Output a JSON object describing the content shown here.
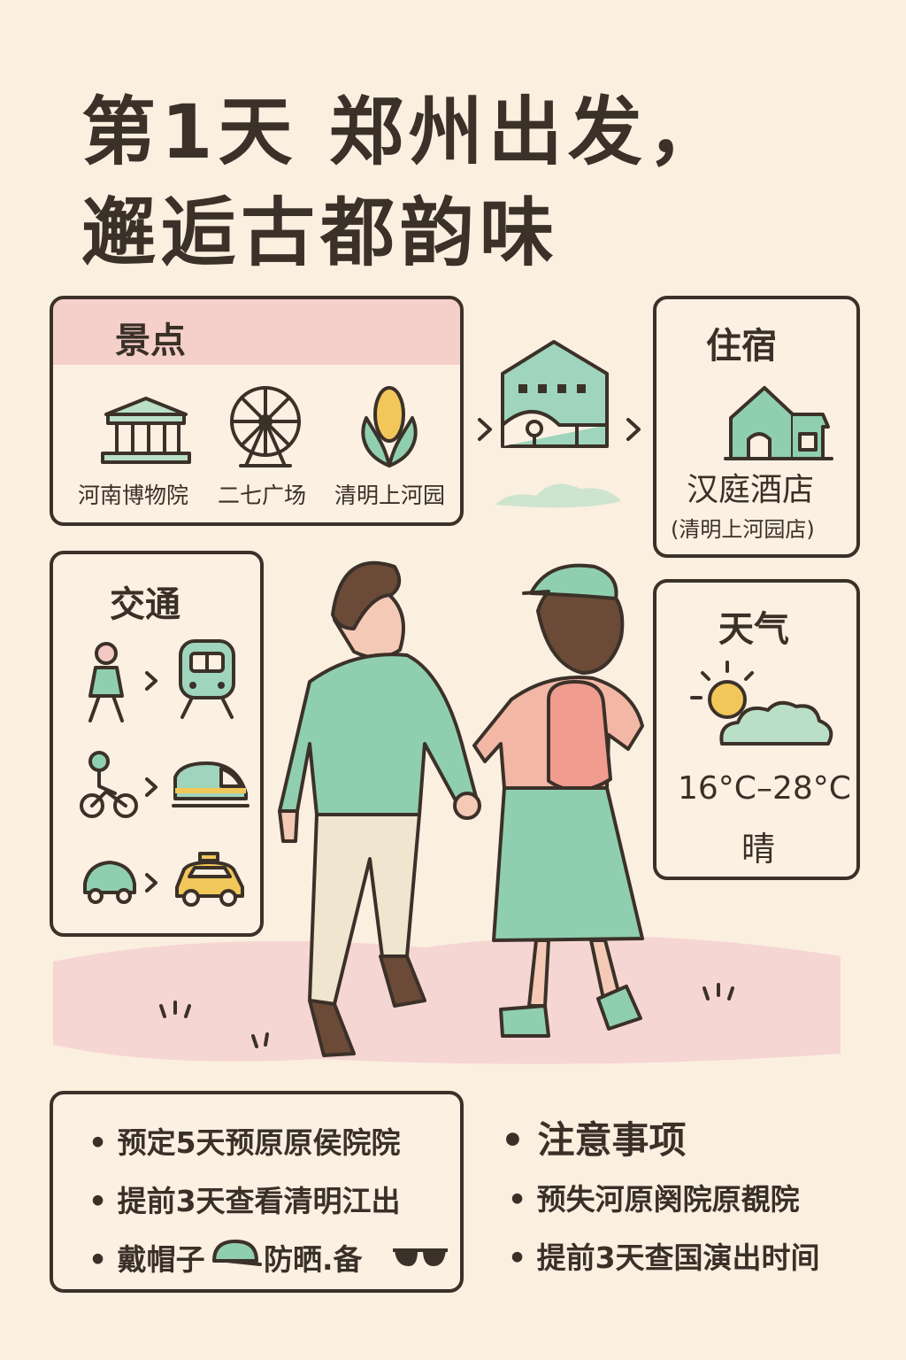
{
  "title": {
    "line1": "第1天  郑州出发，",
    "line2": "邂逅古都韵味"
  },
  "attractions": {
    "heading": "景点",
    "items": [
      "河南博物院",
      "二七广场",
      "清明上河园"
    ]
  },
  "lodging": {
    "heading": "住宿",
    "name": "汉庭酒店",
    "branch": "(清明上河园店)"
  },
  "transport": {
    "heading": "交通"
  },
  "weather": {
    "heading": "天气",
    "temp": "16°C–28°C",
    "condition": "晴"
  },
  "tips_left": [
    "预定5天预原原侯院院",
    "提前3天查看清明江出",
    "戴帽子",
    "防晒.备"
  ],
  "tips_right": {
    "heading": "注意事项",
    "items": [
      "预失河原阕院原覩院",
      "提前3天查国演出时间"
    ]
  },
  "colors": {
    "bg": "#fbefe0",
    "mint": "#8fcfb0",
    "pink": "#f3c7c2",
    "line": "#3b3129"
  }
}
